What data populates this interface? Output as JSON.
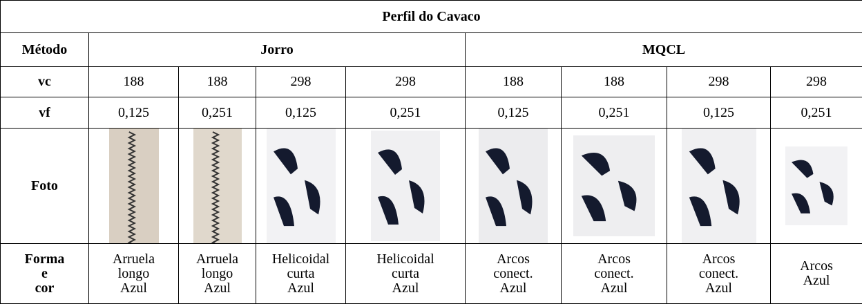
{
  "header": {
    "title": "Perfil do Cavaco"
  },
  "table": {
    "method_label": "Método",
    "groups": [
      "Jorro",
      "MQCL"
    ],
    "vc_label": "vc",
    "vc": [
      "188",
      "188",
      "298",
      "298",
      "188",
      "188",
      "298",
      "298"
    ],
    "vf_label": "vf",
    "vf": [
      "0,125",
      "0,251",
      "0,125",
      "0,251",
      "0,125",
      "0,251",
      "0,125",
      "0,251"
    ],
    "photo_label": "Foto",
    "form_label": [
      "Forma",
      "e",
      "cor"
    ],
    "forms": [
      [
        "Arruela",
        "longo",
        "Azul"
      ],
      [
        "Arruela",
        "longo",
        "Azul"
      ],
      [
        "Helicoidal",
        "curta",
        "Azul"
      ],
      [
        "Helicoidal",
        "curta",
        "Azul"
      ],
      [
        "Arcos",
        "conect.",
        "Azul"
      ],
      [
        "Arcos",
        "conect.",
        "Azul"
      ],
      [
        "Arcos",
        "conect.",
        "Azul"
      ],
      [
        "Arcos",
        "Azul"
      ]
    ]
  }
}
